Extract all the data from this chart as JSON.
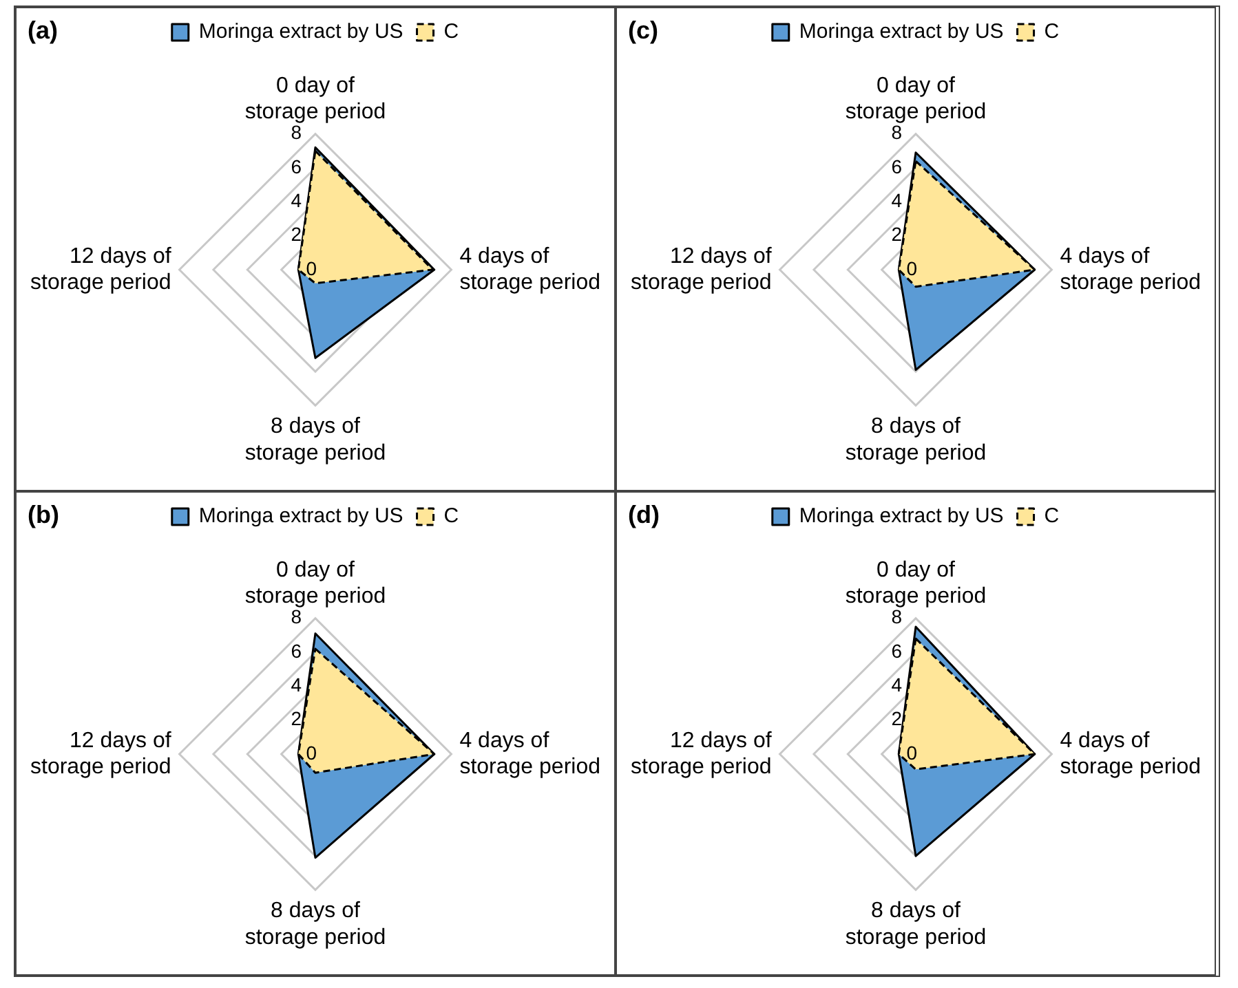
{
  "chart_data": [
    {
      "type": "radar",
      "title": "(a)",
      "categories": [
        "0 day of storage period",
        "4 days of storage period",
        "8 days of storage period",
        "12 days of storage period"
      ],
      "ylim": [
        0,
        8
      ],
      "yticks": [
        0,
        2,
        4,
        6,
        8
      ],
      "grid": true,
      "legend": "top",
      "marker": "none",
      "series": [
        {
          "name": "Moringa extract by US",
          "color": "#5b9bd5",
          "line_style": "solid",
          "values": [
            7.2,
            7.0,
            5.2,
            1.0
          ]
        },
        {
          "name": "C",
          "color": "#ffe699",
          "line_style": "dashed",
          "values": [
            7.0,
            6.9,
            0.8,
            1.0
          ]
        }
      ]
    },
    {
      "type": "radar",
      "title": "(c)",
      "categories": [
        "0 day of storage period",
        "4 days of storage period",
        "8 days of storage period",
        "12 days of storage period"
      ],
      "ylim": [
        0,
        8
      ],
      "yticks": [
        0,
        2,
        4,
        6,
        8
      ],
      "grid": true,
      "legend": "top",
      "marker": "none",
      "series": [
        {
          "name": "Moringa extract by US",
          "color": "#5b9bd5",
          "line_style": "solid",
          "values": [
            6.9,
            7.0,
            5.9,
            1.0
          ]
        },
        {
          "name": "C",
          "color": "#ffe699",
          "line_style": "dashed",
          "values": [
            6.4,
            7.0,
            1.0,
            1.0
          ]
        }
      ]
    },
    {
      "type": "radar",
      "title": "(b)",
      "categories": [
        "0 day of storage period",
        "4 days of storage period",
        "8 days of storage period",
        "12 days of storage period"
      ],
      "ylim": [
        0,
        8
      ],
      "yticks": [
        0,
        2,
        4,
        6,
        8
      ],
      "grid": true,
      "legend": "top",
      "marker": "none",
      "series": [
        {
          "name": "Moringa extract by US",
          "color": "#5b9bd5",
          "line_style": "solid",
          "values": [
            7.1,
            7.0,
            6.1,
            1.0
          ]
        },
        {
          "name": "C",
          "color": "#ffe699",
          "line_style": "dashed",
          "values": [
            6.2,
            7.0,
            1.1,
            1.0
          ]
        }
      ]
    },
    {
      "type": "radar",
      "title": "(d)",
      "categories": [
        "0 day of storage period",
        "4 days of storage period",
        "8 days of storage period",
        "12 days of storage period"
      ],
      "ylim": [
        0,
        8
      ],
      "yticks": [
        0,
        2,
        4,
        6,
        8
      ],
      "grid": true,
      "legend": "top",
      "marker": "none",
      "series": [
        {
          "name": "Moringa extract by US",
          "color": "#5b9bd5",
          "line_style": "solid",
          "values": [
            7.5,
            7.0,
            6.0,
            1.0
          ]
        },
        {
          "name": "C",
          "color": "#ffe699",
          "line_style": "dashed",
          "values": [
            6.8,
            7.0,
            0.9,
            1.0
          ]
        }
      ]
    }
  ]
}
